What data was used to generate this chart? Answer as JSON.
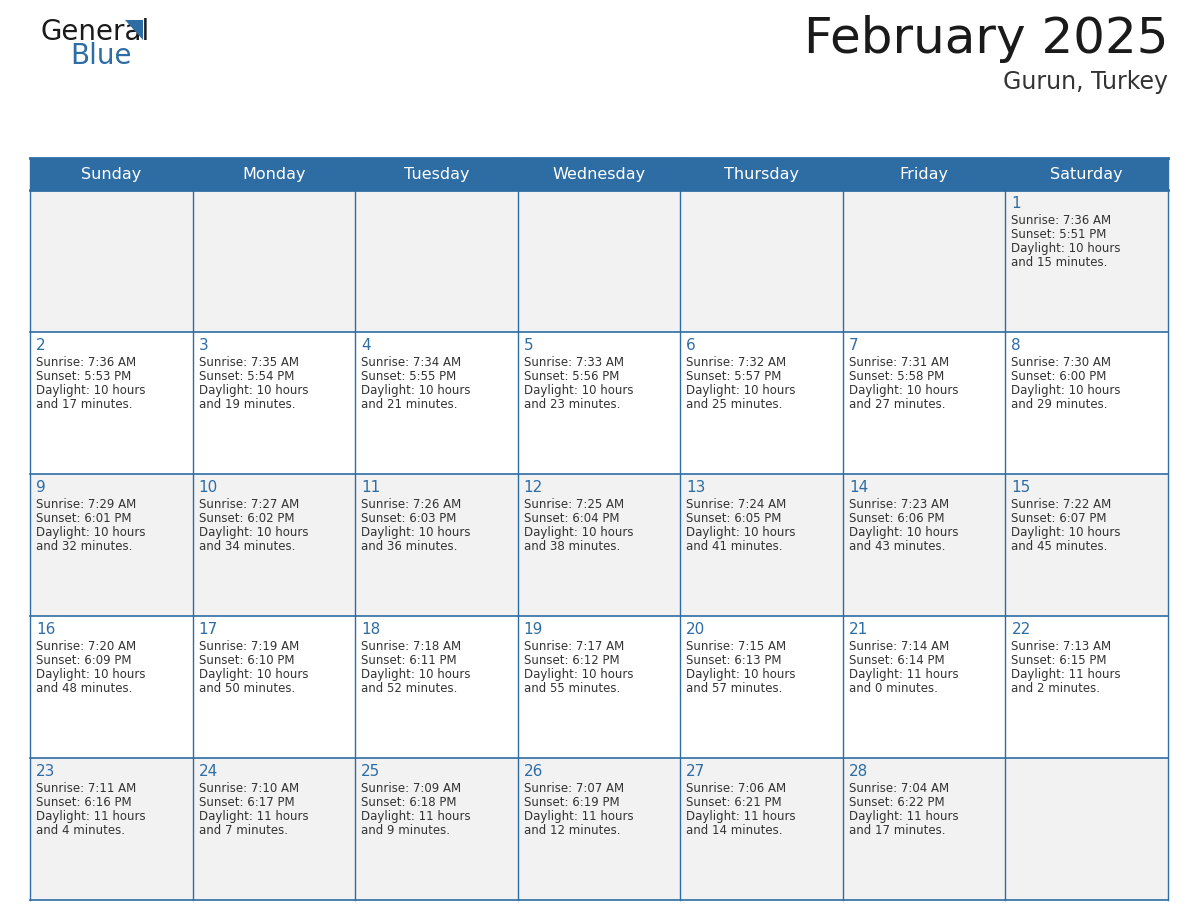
{
  "title": "February 2025",
  "subtitle": "Gurun, Turkey",
  "days_of_week": [
    "Sunday",
    "Monday",
    "Tuesday",
    "Wednesday",
    "Thursday",
    "Friday",
    "Saturday"
  ],
  "header_bg_color": "#2E6DA4",
  "header_text_color": "#FFFFFF",
  "cell_bg_even": "#F2F2F2",
  "cell_bg_odd": "#FFFFFF",
  "grid_line_color": "#2E6DA4",
  "title_color": "#1a1a1a",
  "subtitle_color": "#333333",
  "day_number_color": "#2E6DA4",
  "cell_text_color": "#333333",
  "logo_text_color": "#1a1a1a",
  "logo_blue_color": "#2E6DA4",
  "calendar_data": [
    {
      "day": 1,
      "row": 0,
      "col": 6,
      "sunrise": "7:36 AM",
      "sunset": "5:51 PM",
      "daylight_line1": "Daylight: 10 hours",
      "daylight_line2": "and 15 minutes."
    },
    {
      "day": 2,
      "row": 1,
      "col": 0,
      "sunrise": "7:36 AM",
      "sunset": "5:53 PM",
      "daylight_line1": "Daylight: 10 hours",
      "daylight_line2": "and 17 minutes."
    },
    {
      "day": 3,
      "row": 1,
      "col": 1,
      "sunrise": "7:35 AM",
      "sunset": "5:54 PM",
      "daylight_line1": "Daylight: 10 hours",
      "daylight_line2": "and 19 minutes."
    },
    {
      "day": 4,
      "row": 1,
      "col": 2,
      "sunrise": "7:34 AM",
      "sunset": "5:55 PM",
      "daylight_line1": "Daylight: 10 hours",
      "daylight_line2": "and 21 minutes."
    },
    {
      "day": 5,
      "row": 1,
      "col": 3,
      "sunrise": "7:33 AM",
      "sunset": "5:56 PM",
      "daylight_line1": "Daylight: 10 hours",
      "daylight_line2": "and 23 minutes."
    },
    {
      "day": 6,
      "row": 1,
      "col": 4,
      "sunrise": "7:32 AM",
      "sunset": "5:57 PM",
      "daylight_line1": "Daylight: 10 hours",
      "daylight_line2": "and 25 minutes."
    },
    {
      "day": 7,
      "row": 1,
      "col": 5,
      "sunrise": "7:31 AM",
      "sunset": "5:58 PM",
      "daylight_line1": "Daylight: 10 hours",
      "daylight_line2": "and 27 minutes."
    },
    {
      "day": 8,
      "row": 1,
      "col": 6,
      "sunrise": "7:30 AM",
      "sunset": "6:00 PM",
      "daylight_line1": "Daylight: 10 hours",
      "daylight_line2": "and 29 minutes."
    },
    {
      "day": 9,
      "row": 2,
      "col": 0,
      "sunrise": "7:29 AM",
      "sunset": "6:01 PM",
      "daylight_line1": "Daylight: 10 hours",
      "daylight_line2": "and 32 minutes."
    },
    {
      "day": 10,
      "row": 2,
      "col": 1,
      "sunrise": "7:27 AM",
      "sunset": "6:02 PM",
      "daylight_line1": "Daylight: 10 hours",
      "daylight_line2": "and 34 minutes."
    },
    {
      "day": 11,
      "row": 2,
      "col": 2,
      "sunrise": "7:26 AM",
      "sunset": "6:03 PM",
      "daylight_line1": "Daylight: 10 hours",
      "daylight_line2": "and 36 minutes."
    },
    {
      "day": 12,
      "row": 2,
      "col": 3,
      "sunrise": "7:25 AM",
      "sunset": "6:04 PM",
      "daylight_line1": "Daylight: 10 hours",
      "daylight_line2": "and 38 minutes."
    },
    {
      "day": 13,
      "row": 2,
      "col": 4,
      "sunrise": "7:24 AM",
      "sunset": "6:05 PM",
      "daylight_line1": "Daylight: 10 hours",
      "daylight_line2": "and 41 minutes."
    },
    {
      "day": 14,
      "row": 2,
      "col": 5,
      "sunrise": "7:23 AM",
      "sunset": "6:06 PM",
      "daylight_line1": "Daylight: 10 hours",
      "daylight_line2": "and 43 minutes."
    },
    {
      "day": 15,
      "row": 2,
      "col": 6,
      "sunrise": "7:22 AM",
      "sunset": "6:07 PM",
      "daylight_line1": "Daylight: 10 hours",
      "daylight_line2": "and 45 minutes."
    },
    {
      "day": 16,
      "row": 3,
      "col": 0,
      "sunrise": "7:20 AM",
      "sunset": "6:09 PM",
      "daylight_line1": "Daylight: 10 hours",
      "daylight_line2": "and 48 minutes."
    },
    {
      "day": 17,
      "row": 3,
      "col": 1,
      "sunrise": "7:19 AM",
      "sunset": "6:10 PM",
      "daylight_line1": "Daylight: 10 hours",
      "daylight_line2": "and 50 minutes."
    },
    {
      "day": 18,
      "row": 3,
      "col": 2,
      "sunrise": "7:18 AM",
      "sunset": "6:11 PM",
      "daylight_line1": "Daylight: 10 hours",
      "daylight_line2": "and 52 minutes."
    },
    {
      "day": 19,
      "row": 3,
      "col": 3,
      "sunrise": "7:17 AM",
      "sunset": "6:12 PM",
      "daylight_line1": "Daylight: 10 hours",
      "daylight_line2": "and 55 minutes."
    },
    {
      "day": 20,
      "row": 3,
      "col": 4,
      "sunrise": "7:15 AM",
      "sunset": "6:13 PM",
      "daylight_line1": "Daylight: 10 hours",
      "daylight_line2": "and 57 minutes."
    },
    {
      "day": 21,
      "row": 3,
      "col": 5,
      "sunrise": "7:14 AM",
      "sunset": "6:14 PM",
      "daylight_line1": "Daylight: 11 hours",
      "daylight_line2": "and 0 minutes."
    },
    {
      "day": 22,
      "row": 3,
      "col": 6,
      "sunrise": "7:13 AM",
      "sunset": "6:15 PM",
      "daylight_line1": "Daylight: 11 hours",
      "daylight_line2": "and 2 minutes."
    },
    {
      "day": 23,
      "row": 4,
      "col": 0,
      "sunrise": "7:11 AM",
      "sunset": "6:16 PM",
      "daylight_line1": "Daylight: 11 hours",
      "daylight_line2": "and 4 minutes."
    },
    {
      "day": 24,
      "row": 4,
      "col": 1,
      "sunrise": "7:10 AM",
      "sunset": "6:17 PM",
      "daylight_line1": "Daylight: 11 hours",
      "daylight_line2": "and 7 minutes."
    },
    {
      "day": 25,
      "row": 4,
      "col": 2,
      "sunrise": "7:09 AM",
      "sunset": "6:18 PM",
      "daylight_line1": "Daylight: 11 hours",
      "daylight_line2": "and 9 minutes."
    },
    {
      "day": 26,
      "row": 4,
      "col": 3,
      "sunrise": "7:07 AM",
      "sunset": "6:19 PM",
      "daylight_line1": "Daylight: 11 hours",
      "daylight_line2": "and 12 minutes."
    },
    {
      "day": 27,
      "row": 4,
      "col": 4,
      "sunrise": "7:06 AM",
      "sunset": "6:21 PM",
      "daylight_line1": "Daylight: 11 hours",
      "daylight_line2": "and 14 minutes."
    },
    {
      "day": 28,
      "row": 4,
      "col": 5,
      "sunrise": "7:04 AM",
      "sunset": "6:22 PM",
      "daylight_line1": "Daylight: 11 hours",
      "daylight_line2": "and 17 minutes."
    }
  ]
}
